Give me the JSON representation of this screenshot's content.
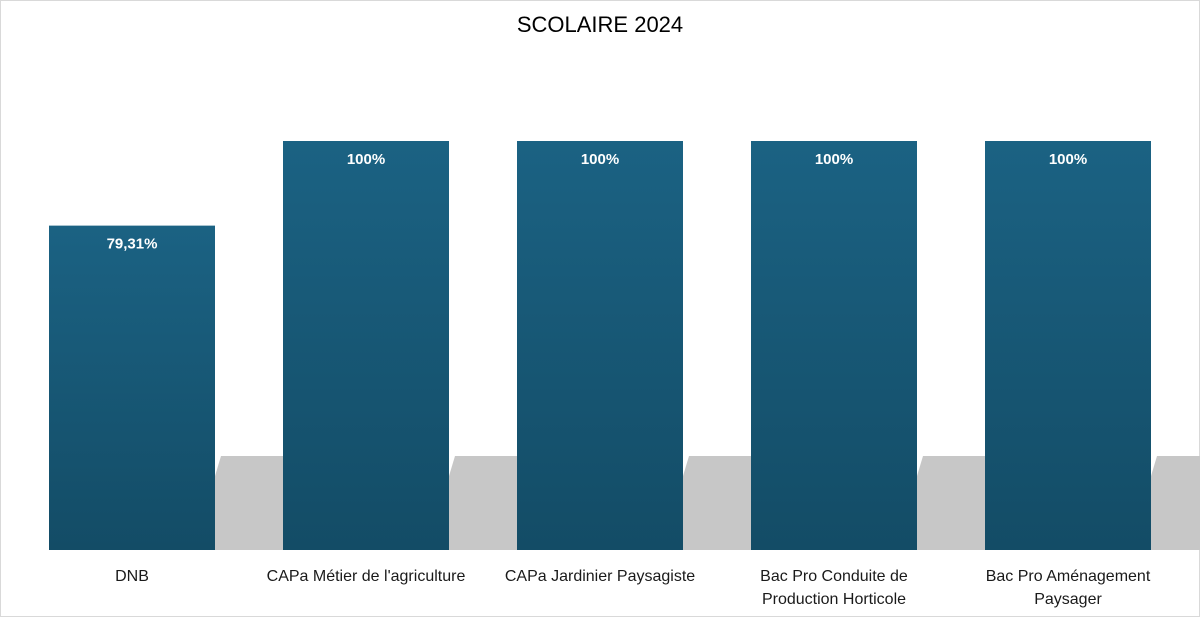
{
  "chart_data": {
    "type": "bar",
    "title": "SCOLAIRE 2024",
    "categories": [
      [
        "DNB"
      ],
      [
        "CAPa Métier de l'agriculture"
      ],
      [
        "CAPa Jardinier Paysagiste"
      ],
      [
        "Bac Pro Conduite de",
        "Production Horticole"
      ],
      [
        "Bac Pro Aménagement",
        "Paysager"
      ]
    ],
    "values": [
      79.31,
      100,
      100,
      100,
      100
    ],
    "data_labels": [
      "79,31%",
      "100%",
      "100%",
      "100%",
      "100%"
    ],
    "ylim": [
      0,
      100
    ],
    "grid": false,
    "legend": "none",
    "xlabel": "",
    "ylabel": "",
    "colors": {
      "bar_top": "#1b6283",
      "bar_bottom": "#134c66",
      "shadow": "#c7c7c7",
      "label": "#ffffff",
      "text": "#1a1a1a"
    }
  }
}
